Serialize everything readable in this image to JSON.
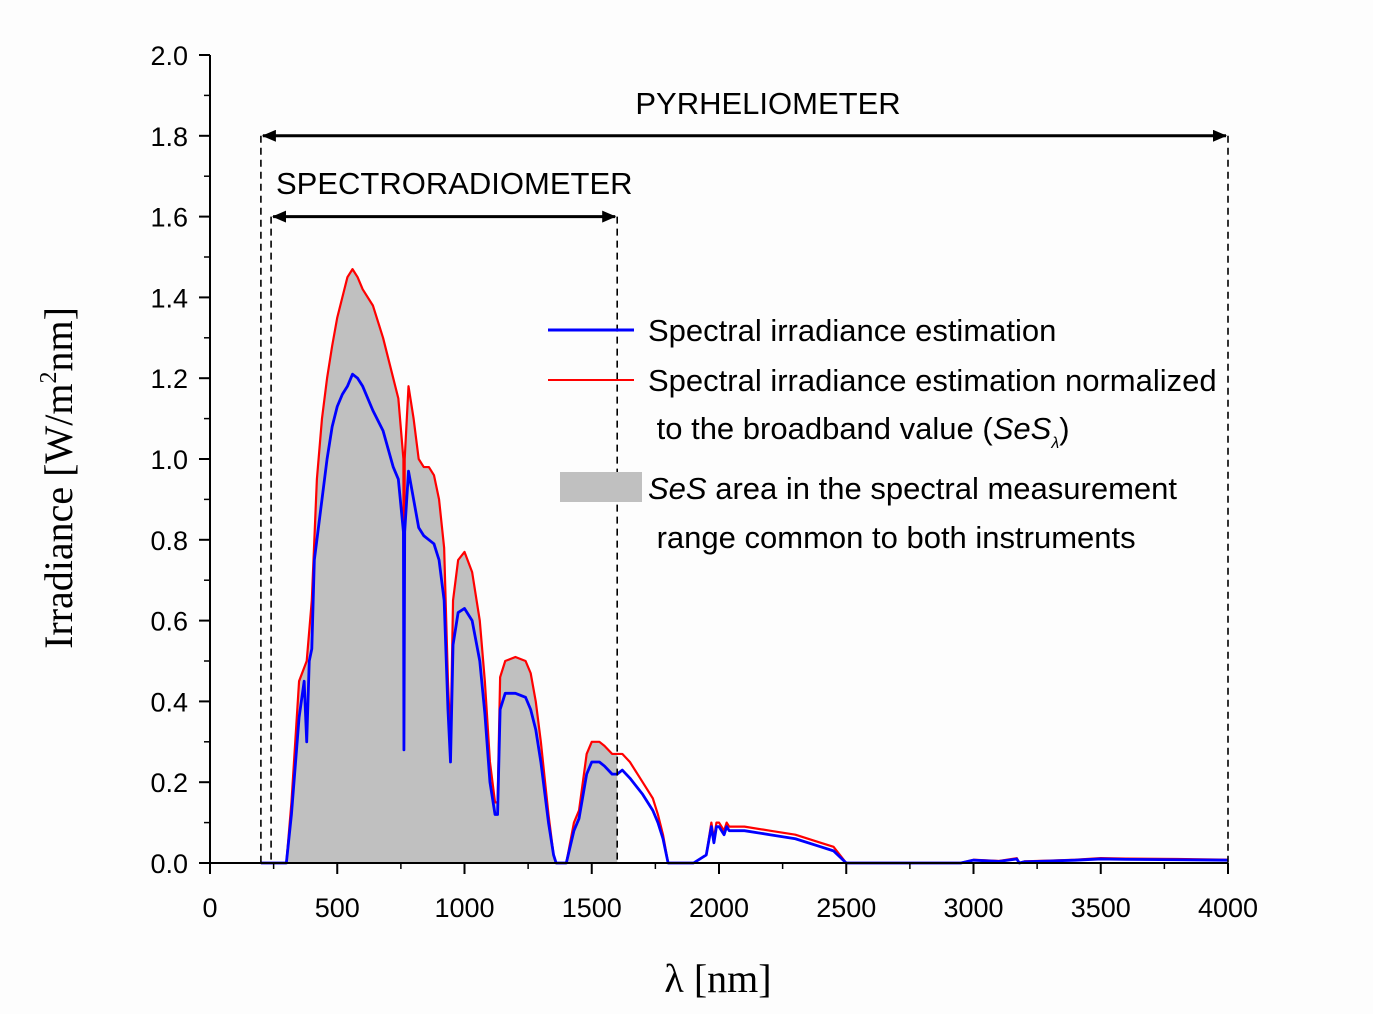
{
  "chart_data": {
    "type": "area",
    "xlabel": "λ [nm]",
    "ylabel": {
      "prefix": "Irradiance [W/m",
      "sup": "2",
      "suffix": "nm]"
    },
    "xlim": [
      0,
      4000
    ],
    "ylim": [
      0.0,
      2.0
    ],
    "x_ticks": [
      0,
      500,
      1000,
      1500,
      2000,
      2500,
      3000,
      3500,
      4000
    ],
    "x_tick_labels": [
      "0",
      "500",
      "1000",
      "1500",
      "2000",
      "2500",
      "3000",
      "3500",
      "4000"
    ],
    "y_ticks": [
      0.0,
      0.2,
      0.4,
      0.6,
      0.8,
      1.0,
      1.2,
      1.4,
      1.6,
      1.8,
      2.0
    ],
    "y_tick_labels": [
      "0.0",
      "0.2",
      "0.4",
      "0.6",
      "0.8",
      "1.0",
      "1.2",
      "1.4",
      "1.6",
      "1.8",
      "2.0"
    ],
    "annotations": [
      {
        "name": "pyrheliometer-range",
        "text": "PYRHELIOMETER",
        "x_start": 200,
        "x_end": 4000,
        "y_arrow": 1.8
      },
      {
        "name": "spectroradiometer-range",
        "text": "SPECTRORADIOMETER",
        "x_start": 240,
        "x_end": 1600,
        "y_arrow": 1.6
      }
    ],
    "legend": {
      "position": "center-right",
      "entries": [
        {
          "name": "blue-series",
          "text": "Spectral irradiance estimation",
          "color": "#0000ff"
        },
        {
          "name": "red-series",
          "line1": "Spectral irradiance estimation normalized",
          "line2_prefix": " to the broadband value (",
          "line2_italic": "SeS",
          "line2_sub": "λ",
          "line2_suffix": ")",
          "color": "#ff0000"
        },
        {
          "name": "gray-area",
          "line1_italic": "SeS",
          "line1_rest": " area in the spectral measurement",
          "line2": " range common to both instruments",
          "color": "#c0c0c0"
        }
      ]
    },
    "series": [
      {
        "name": "Spectral irradiance estimation normalized to the broadband value (SeSλ)",
        "color": "#ff0000",
        "x": [
          200,
          280,
          300,
          320,
          350,
          380,
          400,
          420,
          440,
          460,
          480,
          500,
          520,
          540,
          560,
          580,
          600,
          640,
          680,
          720,
          740,
          760,
          762,
          765,
          780,
          800,
          820,
          840,
          860,
          880,
          900,
          920,
          935,
          945,
          955,
          975,
          1000,
          1030,
          1060,
          1080,
          1100,
          1120,
          1130,
          1140,
          1160,
          1200,
          1240,
          1260,
          1280,
          1300,
          1330,
          1350,
          1360,
          1400,
          1430,
          1450,
          1480,
          1500,
          1530,
          1550,
          1580,
          1600,
          1620,
          1650,
          1700,
          1740,
          1760,
          1780,
          1800,
          1850,
          1900,
          1950,
          1970,
          1980,
          1990,
          2000,
          2020,
          2030,
          2040,
          2100,
          2200,
          2300,
          2400,
          2450,
          2500,
          2520,
          2600,
          2800,
          2950,
          3000,
          3100,
          3170,
          3180,
          3200,
          3300,
          3400,
          3500,
          3600,
          3800,
          4000
        ],
        "y": [
          0.0,
          0.0,
          0.0,
          0.15,
          0.45,
          0.5,
          0.65,
          0.95,
          1.1,
          1.2,
          1.28,
          1.35,
          1.4,
          1.45,
          1.47,
          1.45,
          1.42,
          1.38,
          1.3,
          1.2,
          1.15,
          1.0,
          0.35,
          1.0,
          1.18,
          1.1,
          1.0,
          0.98,
          0.98,
          0.96,
          0.9,
          0.78,
          0.45,
          0.3,
          0.65,
          0.75,
          0.77,
          0.72,
          0.6,
          0.45,
          0.25,
          0.15,
          0.15,
          0.46,
          0.5,
          0.51,
          0.5,
          0.47,
          0.4,
          0.3,
          0.12,
          0.02,
          0.0,
          0.0,
          0.1,
          0.13,
          0.27,
          0.3,
          0.3,
          0.29,
          0.27,
          0.27,
          0.27,
          0.25,
          0.2,
          0.16,
          0.12,
          0.07,
          0.0,
          0.0,
          0.0,
          0.02,
          0.1,
          0.06,
          0.1,
          0.1,
          0.08,
          0.1,
          0.09,
          0.09,
          0.08,
          0.07,
          0.05,
          0.04,
          0.0,
          0.0,
          0.0,
          0.0,
          0.0,
          0.008,
          0.005,
          0.012,
          0.0,
          0.004,
          0.006,
          0.008,
          0.012,
          0.011,
          0.01,
          0.008
        ]
      },
      {
        "name": "Spectral irradiance estimation",
        "color": "#0000ff",
        "x": [
          200,
          280,
          300,
          320,
          350,
          370,
          380,
          390,
          400,
          410,
          420,
          440,
          460,
          480,
          500,
          520,
          540,
          560,
          580,
          600,
          640,
          680,
          720,
          740,
          760,
          762,
          765,
          780,
          800,
          820,
          840,
          860,
          880,
          900,
          920,
          935,
          945,
          955,
          975,
          1000,
          1030,
          1060,
          1080,
          1100,
          1120,
          1130,
          1140,
          1160,
          1200,
          1240,
          1260,
          1280,
          1300,
          1330,
          1350,
          1360,
          1400,
          1430,
          1450,
          1480,
          1500,
          1530,
          1550,
          1580,
          1600,
          1620,
          1650,
          1700,
          1740,
          1760,
          1780,
          1800,
          1850,
          1900,
          1950,
          1970,
          1980,
          1990,
          2000,
          2020,
          2030,
          2040,
          2100,
          2200,
          2300,
          2400,
          2450,
          2500,
          2520,
          2600,
          2800,
          2950,
          3000,
          3100,
          3170,
          3180,
          3200,
          3300,
          3400,
          3500,
          3600,
          3800,
          4000
        ],
        "y": [
          0.0,
          0.0,
          0.0,
          0.12,
          0.36,
          0.45,
          0.3,
          0.5,
          0.53,
          0.75,
          0.8,
          0.9,
          1.0,
          1.08,
          1.13,
          1.16,
          1.18,
          1.21,
          1.2,
          1.18,
          1.12,
          1.07,
          0.98,
          0.95,
          0.82,
          0.28,
          0.82,
          0.97,
          0.9,
          0.83,
          0.81,
          0.8,
          0.79,
          0.75,
          0.65,
          0.38,
          0.25,
          0.54,
          0.62,
          0.63,
          0.6,
          0.5,
          0.37,
          0.2,
          0.12,
          0.12,
          0.38,
          0.42,
          0.42,
          0.41,
          0.38,
          0.33,
          0.25,
          0.1,
          0.02,
          0.0,
          0.0,
          0.08,
          0.11,
          0.22,
          0.25,
          0.25,
          0.24,
          0.22,
          0.22,
          0.23,
          0.21,
          0.17,
          0.13,
          0.1,
          0.06,
          0.0,
          0.0,
          0.0,
          0.02,
          0.09,
          0.05,
          0.09,
          0.09,
          0.07,
          0.09,
          0.08,
          0.08,
          0.07,
          0.06,
          0.04,
          0.03,
          0.0,
          0.0,
          0.0,
          0.0,
          0.0,
          0.007,
          0.004,
          0.01,
          0.0,
          0.003,
          0.005,
          0.007,
          0.01,
          0.009,
          0.008,
          0.007
        ]
      }
    ],
    "shaded_area": {
      "name": "SeS area in the spectral measurement range common to both instruments",
      "color": "#c0c0c0",
      "x_range": [
        280,
        1600
      ]
    }
  }
}
